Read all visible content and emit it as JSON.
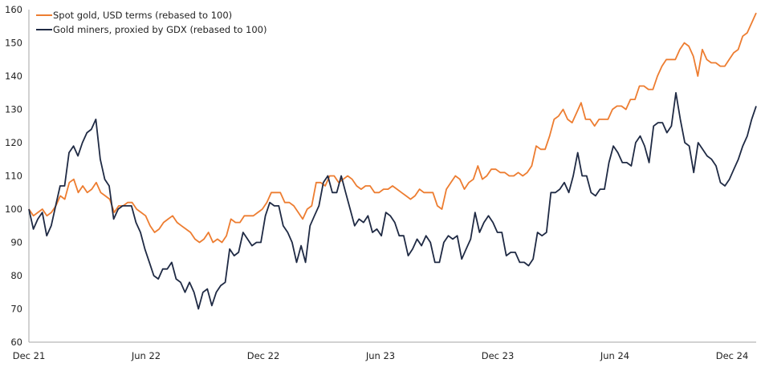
{
  "chart_data": {
    "type": "line",
    "title": "",
    "xlabel": "",
    "ylabel": "",
    "ylim": [
      60,
      160
    ],
    "yticks": [
      60,
      70,
      80,
      90,
      100,
      110,
      120,
      130,
      140,
      150,
      160
    ],
    "xtick_labels": [
      "Dec 21",
      "Jun 22",
      "Dec 22",
      "Jun 23",
      "Dec 23",
      "Jun 24",
      "Dec 24"
    ],
    "grid": false,
    "legend_position": "top-left",
    "frequency": "weekly",
    "series": [
      {
        "name": "Spot gold, USD terms (rebased to 100)",
        "color": "#ED7D31",
        "values": [
          100,
          98,
          99,
          100,
          98,
          99,
          101,
          104,
          103,
          108,
          109,
          105,
          107,
          105,
          106,
          108,
          105,
          104,
          103,
          99,
          101,
          101,
          102,
          102,
          100,
          99,
          98,
          95,
          93,
          94,
          96,
          97,
          98,
          96,
          95,
          94,
          93,
          91,
          90,
          91,
          93,
          90,
          91,
          90,
          92,
          97,
          96,
          96,
          98,
          98,
          98,
          99,
          100,
          102,
          105,
          105,
          105,
          102,
          102,
          101,
          99,
          97,
          100,
          101,
          108,
          108,
          107,
          110,
          110,
          108,
          109,
          110,
          109,
          107,
          106,
          107,
          107,
          105,
          105,
          106,
          106,
          107,
          106,
          105,
          104,
          103,
          104,
          106,
          105,
          105,
          105,
          101,
          100,
          106,
          108,
          110,
          109,
          106,
          108,
          109,
          113,
          109,
          110,
          112,
          112,
          111,
          111,
          110,
          110,
          111,
          110,
          111,
          113,
          119,
          118,
          118,
          122,
          127,
          128,
          130,
          127,
          126,
          129,
          132,
          127,
          127,
          125,
          127,
          127,
          127,
          130,
          131,
          131,
          130,
          133,
          133,
          137,
          137,
          136,
          136,
          140,
          143,
          145,
          145,
          145,
          148,
          150,
          149,
          146,
          140,
          148,
          145,
          144,
          144,
          143,
          143,
          145,
          147,
          148,
          152,
          153,
          156,
          159
        ]
      },
      {
        "name": "Gold miners, proxied by GDX (rebased to 100)",
        "color": "#1F2A44",
        "values": [
          100,
          94,
          97,
          99,
          92,
          95,
          101,
          107,
          107,
          117,
          119,
          116,
          120,
          123,
          124,
          127,
          115,
          109,
          107,
          97,
          100,
          101,
          101,
          101,
          96,
          93,
          88,
          84,
          80,
          79,
          82,
          82,
          84,
          79,
          78,
          75,
          78,
          75,
          70,
          75,
          76,
          71,
          75,
          77,
          78,
          88,
          86,
          87,
          93,
          91,
          89,
          90,
          90,
          98,
          102,
          101,
          101,
          95,
          93,
          90,
          84,
          89,
          84,
          95,
          98,
          101,
          108,
          110,
          105,
          105,
          110,
          105,
          100,
          95,
          97,
          96,
          98,
          93,
          94,
          92,
          99,
          98,
          96,
          92,
          92,
          86,
          88,
          91,
          89,
          92,
          90,
          84,
          84,
          90,
          92,
          91,
          92,
          85,
          88,
          91,
          99,
          93,
          96,
          98,
          96,
          93,
          93,
          86,
          87,
          87,
          84,
          84,
          83,
          85,
          93,
          92,
          93,
          105,
          105,
          106,
          108,
          105,
          110,
          117,
          110,
          110,
          105,
          104,
          106,
          106,
          114,
          119,
          117,
          114,
          114,
          113,
          120,
          122,
          119,
          114,
          125,
          126,
          126,
          123,
          125,
          135,
          127,
          120,
          119,
          111,
          120,
          118,
          116,
          115,
          113,
          108,
          107,
          109,
          112,
          115,
          119,
          122,
          127,
          131
        ]
      }
    ]
  },
  "legend": [
    {
      "label": "Spot gold, USD terms (rebased to 100)",
      "color": "#ED7D31"
    },
    {
      "label": "Gold miners, proxied by GDX (rebased to 100)",
      "color": "#1F2A44"
    }
  ]
}
